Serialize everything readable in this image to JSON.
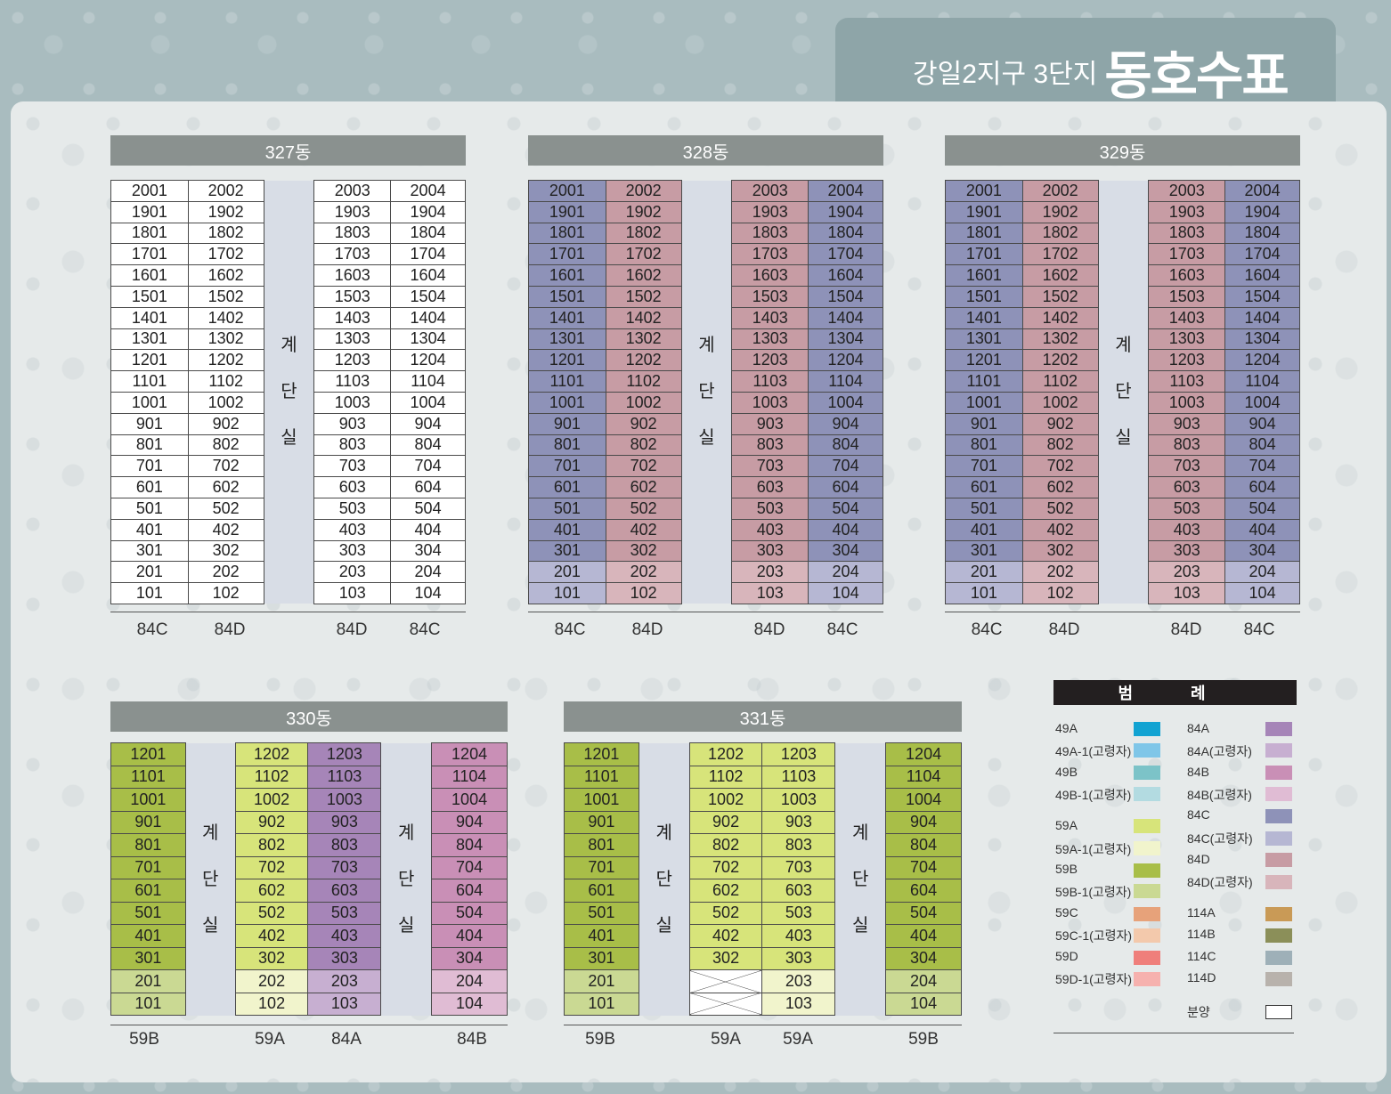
{
  "title": {
    "small": "강일2지구 3단지",
    "big": "동호수표"
  },
  "stairwell_chars": [
    "계",
    "단",
    "실"
  ],
  "top_buildings": [
    {
      "name": "327동",
      "types": [
        "84C",
        "84D",
        "84D",
        "84C"
      ]
    },
    {
      "name": "328동",
      "types": [
        "84C",
        "84D",
        "84D",
        "84C"
      ]
    },
    {
      "name": "329동",
      "types": [
        "84C",
        "84D",
        "84D",
        "84C"
      ]
    }
  ],
  "top_floors": [
    "20",
    "19",
    "18",
    "17",
    "16",
    "15",
    "14",
    "13",
    "12",
    "11",
    "10",
    "9",
    "8",
    "7",
    "6",
    "5",
    "4",
    "3",
    "2",
    "1"
  ],
  "bottom_floors": [
    "12",
    "11",
    "10",
    "9",
    "8",
    "7",
    "6",
    "5",
    "4",
    "3",
    "2",
    "1"
  ],
  "building_330": {
    "name": "330동",
    "types": [
      "59B",
      "59A",
      "84A",
      "84B"
    ]
  },
  "building_331": {
    "name": "331동",
    "types": [
      "59B",
      "59A",
      "59A",
      "59B"
    ],
    "vacant_units": [
      "202",
      "102"
    ]
  },
  "colors": {
    "84C": "#8e92b8",
    "84D": "#c79ca4",
    "59B": "#a8be48",
    "59A": "#d7e47a",
    "84A": "#a685b8",
    "84B": "#c98fb6",
    "stairwell": "#d8dde6",
    "header": "#8a918f"
  },
  "legend": {
    "title": "범 례",
    "left": [
      {
        "label": "49A",
        "color": "#12a3d2"
      },
      {
        "label": "49A-1(고령자)",
        "color": "#7fc6e8"
      },
      {
        "label": "49B",
        "color": "#7cc3c8"
      },
      {
        "label": "49B-1(고령자)",
        "color": "#b3dbe1"
      },
      {
        "label": "59A",
        "color": "#d7e47a"
      },
      {
        "label": "59A-1(고령자)",
        "color": "#f1f4cc"
      },
      {
        "label": "59B",
        "color": "#a8be48"
      },
      {
        "label": "59B-1(고령자)",
        "color": "#cad993"
      },
      {
        "label": "59C",
        "color": "#e7a27a"
      },
      {
        "label": "59C-1(고령자)",
        "color": "#f3c9ac"
      },
      {
        "label": "59D",
        "color": "#ef7f7b"
      },
      {
        "label": "59D-1(고령자)",
        "color": "#f6b1ae"
      }
    ],
    "right": [
      {
        "label": "84A",
        "color": "#a685b8"
      },
      {
        "label": "84A(고령자)",
        "color": "#c7afd1"
      },
      {
        "label": "84B",
        "color": "#c98fb6"
      },
      {
        "label": "84B(고령자)",
        "color": "#e0bcd4"
      },
      {
        "label": "84C",
        "color": "#8e92b8"
      },
      {
        "label": "84C(고령자)",
        "color": "#b6b7d3"
      },
      {
        "label": "84D",
        "color": "#c79ca4"
      },
      {
        "label": "84D(고령자)",
        "color": "#d8b5bb"
      },
      {
        "label": "114A",
        "color": "#c99a56"
      },
      {
        "label": "114B",
        "color": "#8b8f59"
      },
      {
        "label": "114C",
        "color": "#9eb0b8"
      },
      {
        "label": "114D",
        "color": "#b8b2ac"
      },
      {
        "label": "분양",
        "color": "#ffffff"
      }
    ]
  }
}
